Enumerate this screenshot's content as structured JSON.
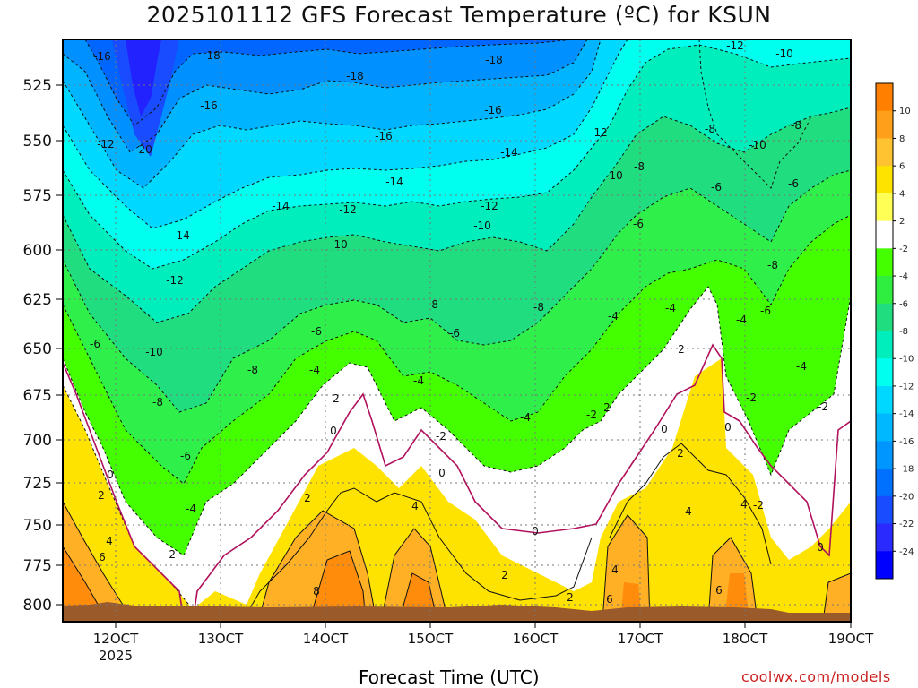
{
  "header": {
    "title": "2025101112 GFS Forecast Temperature (ºC) for KSUN",
    "xlabel": "Forecast Time (UTC)",
    "credit": "coolwx.com/models"
  },
  "chart_data": {
    "type": "contour",
    "title": "2025101112 GFS Forecast Temperature (ºC) for KSUN",
    "xlabel": "Forecast Time (UTC)",
    "ylabel": "",
    "x_ticks": [
      "12OCT",
      "13OCT",
      "14OCT",
      "15OCT",
      "16OCT",
      "17OCT",
      "18OCT",
      "19OCT"
    ],
    "x_tick_year": "2025",
    "y_ticks": [
      525,
      550,
      575,
      600,
      625,
      650,
      675,
      700,
      725,
      750,
      775,
      800
    ],
    "colorbar": {
      "ticks": [
        10,
        8,
        6,
        4,
        2,
        -2,
        -4,
        -6,
        -8,
        -10,
        -12,
        -14,
        -16,
        -18,
        -20,
        -22,
        -24
      ],
      "colors": [
        "#ff7f00",
        "#ff9f1a",
        "#ffc230",
        "#ffe300",
        "#ffff55",
        "#ffffff",
        "#44ff00",
        "#30ee40",
        "#20dd80",
        "#00eebb",
        "#00ffee",
        "#00d8ff",
        "#00b8ff",
        "#0096ff",
        "#0070ff",
        "#1a4cff",
        "#2a2aff",
        "#0000ff"
      ]
    },
    "contour_labels": [
      {
        "t": "-16",
        "x": 114,
        "y": 63
      },
      {
        "t": "-18",
        "x": 236,
        "y": 62
      },
      {
        "t": "-12",
        "x": 820,
        "y": 51
      },
      {
        "t": "-10",
        "x": 875,
        "y": 60
      },
      {
        "t": "-18",
        "x": 551,
        "y": 67
      },
      {
        "t": "-18",
        "x": 396,
        "y": 85
      },
      {
        "t": "-16",
        "x": 233,
        "y": 118
      },
      {
        "t": "-16",
        "x": 550,
        "y": 123
      },
      {
        "t": "-8",
        "x": 888,
        "y": 140
      },
      {
        "t": "-12",
        "x": 118,
        "y": 161
      },
      {
        "t": "-20",
        "x": 160,
        "y": 167
      },
      {
        "t": "-16",
        "x": 428,
        "y": 152
      },
      {
        "t": "-12",
        "x": 668,
        "y": 148
      },
      {
        "t": "-8",
        "x": 792,
        "y": 144
      },
      {
        "t": "-10",
        "x": 845,
        "y": 162
      },
      {
        "t": "-14",
        "x": 568,
        "y": 170
      },
      {
        "t": "-8",
        "x": 713,
        "y": 186
      },
      {
        "t": "-10",
        "x": 685,
        "y": 196
      },
      {
        "t": "-14",
        "x": 440,
        "y": 203
      },
      {
        "t": "-6",
        "x": 799,
        "y": 209
      },
      {
        "t": "-6",
        "x": 885,
        "y": 205
      },
      {
        "t": "-14",
        "x": 313,
        "y": 230
      },
      {
        "t": "-12",
        "x": 388,
        "y": 234
      },
      {
        "t": "-12",
        "x": 546,
        "y": 230
      },
      {
        "t": "-14",
        "x": 202,
        "y": 263
      },
      {
        "t": "-10",
        "x": 538,
        "y": 252
      },
      {
        "t": "-6",
        "x": 712,
        "y": 250
      },
      {
        "t": "-10",
        "x": 378,
        "y": 273
      },
      {
        "t": "-8",
        "x": 862,
        "y": 296
      },
      {
        "t": "-12",
        "x": 195,
        "y": 313
      },
      {
        "t": "-8",
        "x": 483,
        "y": 340
      },
      {
        "t": "-8",
        "x": 601,
        "y": 343
      },
      {
        "t": "-4",
        "x": 748,
        "y": 344
      },
      {
        "t": "-6",
        "x": 854,
        "y": 347
      },
      {
        "t": "-4",
        "x": 684,
        "y": 353
      },
      {
        "t": "-4",
        "x": 827,
        "y": 357
      },
      {
        "t": "-6",
        "x": 353,
        "y": 370
      },
      {
        "t": "-6",
        "x": 507,
        "y": 372
      },
      {
        "t": "-6",
        "x": 106,
        "y": 384
      },
      {
        "t": "-10",
        "x": 172,
        "y": 393
      },
      {
        "t": "2",
        "x": 760,
        "y": 390
      },
      {
        "t": "-8",
        "x": 282,
        "y": 413
      },
      {
        "t": "-4",
        "x": 351,
        "y": 413
      },
      {
        "t": "-4",
        "x": 894,
        "y": 409
      },
      {
        "t": "-4",
        "x": 467,
        "y": 425
      },
      {
        "t": "2",
        "x": 375,
        "y": 445
      },
      {
        "t": "-8",
        "x": 176,
        "y": 449
      },
      {
        "t": "-2",
        "x": 838,
        "y": 444
      },
      {
        "t": "2",
        "x": 677,
        "y": 455
      },
      {
        "t": "-2",
        "x": 918,
        "y": 454
      },
      {
        "t": "-4",
        "x": 586,
        "y": 466
      },
      {
        "t": "-2",
        "x": 660,
        "y": 463
      },
      {
        "t": "0",
        "x": 812,
        "y": 477
      },
      {
        "t": "0",
        "x": 372,
        "y": 481
      },
      {
        "t": "0",
        "x": 741,
        "y": 479
      },
      {
        "t": "-2",
        "x": 492,
        "y": 487
      },
      {
        "t": "2",
        "x": 759,
        "y": 506
      },
      {
        "t": "-6",
        "x": 207,
        "y": 509
      },
      {
        "t": "0",
        "x": 123,
        "y": 530
      },
      {
        "t": "0",
        "x": 493,
        "y": 528
      },
      {
        "t": "2",
        "x": 113,
        "y": 553
      },
      {
        "t": "2",
        "x": 343,
        "y": 556
      },
      {
        "t": "-4",
        "x": 213,
        "y": 568
      },
      {
        "t": "4",
        "x": 463,
        "y": 565
      },
      {
        "t": "-2",
        "x": 846,
        "y": 564
      },
      {
        "t": "4",
        "x": 830,
        "y": 563
      },
      {
        "t": "4",
        "x": 768,
        "y": 571
      },
      {
        "t": "0",
        "x": 597,
        "y": 593
      },
      {
        "t": "4",
        "x": 122,
        "y": 604
      },
      {
        "t": "0",
        "x": 915,
        "y": 611
      },
      {
        "t": "-2",
        "x": 190,
        "y": 619
      },
      {
        "t": "6",
        "x": 114,
        "y": 622
      },
      {
        "t": "4",
        "x": 686,
        "y": 636
      },
      {
        "t": "2",
        "x": 563,
        "y": 642
      },
      {
        "t": "8",
        "x": 353,
        "y": 660
      },
      {
        "t": "6",
        "x": 802,
        "y": 659
      },
      {
        "t": "2",
        "x": 636,
        "y": 667
      },
      {
        "t": "6",
        "x": 680,
        "y": 669
      }
    ]
  }
}
